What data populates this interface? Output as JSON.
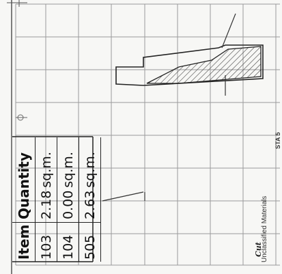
{
  "table": {
    "header_item": "Item",
    "header_quantity": "Quantity",
    "rows": [
      {
        "item": "103",
        "qty": "2.18",
        "unit": "sq.m."
      },
      {
        "item": "104",
        "qty": "0.00",
        "unit": "sq.m."
      },
      {
        "item": "505",
        "qty": "2.63",
        "unit": "sq.m."
      }
    ]
  },
  "legend": {
    "cut_label": "Cut",
    "material_label": "Unclassified Materials"
  },
  "station_label": "STA 5"
}
